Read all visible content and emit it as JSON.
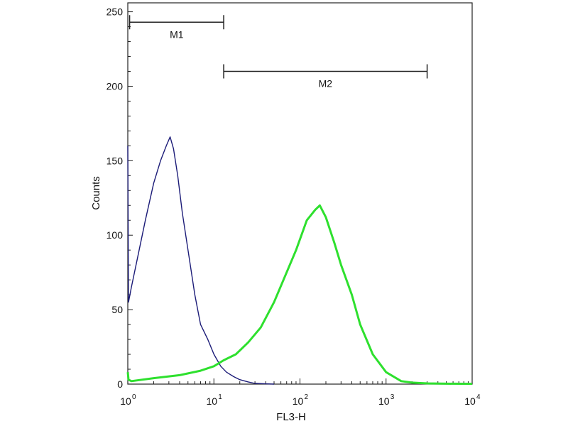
{
  "chart_data": {
    "type": "line",
    "xlabel": "FL3-H",
    "ylabel": "Counts",
    "xscale": "log",
    "xlim": [
      1,
      10000
    ],
    "ylim": [
      0,
      256
    ],
    "x_ticks": [
      {
        "value": 1,
        "base": "10",
        "exp": "0"
      },
      {
        "value": 10,
        "base": "10",
        "exp": "1"
      },
      {
        "value": 100,
        "base": "10",
        "exp": "2"
      },
      {
        "value": 1000,
        "base": "10",
        "exp": "3"
      },
      {
        "value": 10000,
        "base": "10",
        "exp": "4"
      }
    ],
    "y_ticks": [
      0,
      50,
      100,
      150,
      200,
      250
    ],
    "gates": [
      {
        "label": "M1",
        "x_start": 1.05,
        "x_end": 13,
        "level": 243
      },
      {
        "label": "M2",
        "x_start": 13,
        "x_end": 3000,
        "level": 210
      }
    ],
    "series": [
      {
        "color": "#1c1c78",
        "x": [
          1,
          1.02,
          1.1,
          1.3,
          1.6,
          2.0,
          2.4,
          2.8,
          3.1,
          3.4,
          3.8,
          4.3,
          5.0,
          6.0,
          7.0,
          8.5,
          10,
          12,
          14,
          17,
          20,
          25,
          30,
          40,
          50
        ],
        "y": [
          160,
          55,
          65,
          85,
          110,
          135,
          150,
          160,
          166,
          158,
          140,
          115,
          90,
          60,
          40,
          30,
          20,
          12,
          8,
          5,
          3,
          1.5,
          0.5,
          0.2,
          0
        ]
      },
      {
        "color": "#2ee02e",
        "x": [
          1,
          1.02,
          1.1,
          2,
          4,
          7,
          10,
          13,
          18,
          25,
          35,
          50,
          70,
          90,
          120,
          150,
          170,
          200,
          250,
          300,
          400,
          500,
          700,
          1000,
          1500,
          2000,
          3000,
          5000,
          10000
        ],
        "y": [
          8,
          3,
          2,
          4,
          6,
          9,
          12,
          16,
          20,
          28,
          38,
          55,
          75,
          90,
          110,
          117,
          120,
          112,
          95,
          80,
          60,
          40,
          20,
          8,
          2,
          1,
          0.5,
          0.3,
          0.2
        ]
      }
    ]
  }
}
